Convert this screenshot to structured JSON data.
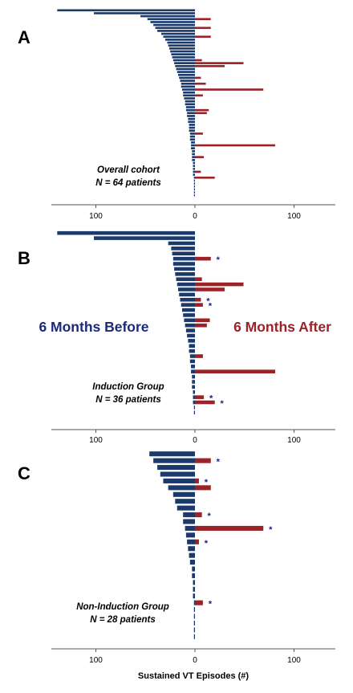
{
  "colors": {
    "before": "#1b3a6b",
    "after": "#9b2226",
    "star": "#1a237e",
    "axis": "#555555"
  },
  "before_label": "6 Months Before",
  "after_label": "6 Months After",
  "x_title": "Sustained VT Episodes (#)",
  "chart_data": [
    {
      "type": "bar",
      "orientation": "horizontal",
      "panel": "A",
      "note_lines": [
        "Overall cohort",
        "N = 64 patients"
      ],
      "xlim": [
        -140,
        140
      ],
      "xticks": [
        -100,
        0,
        100
      ],
      "tick_labels": [
        "100",
        "0",
        "100"
      ],
      "series": [
        {
          "name": "6 Months Before",
          "values": [
            139,
            102,
            55,
            48,
            45,
            42,
            40,
            38,
            34,
            32,
            30,
            28,
            27,
            26,
            25,
            24,
            23,
            22,
            21,
            20,
            19,
            18,
            17,
            16,
            15,
            14,
            14,
            13,
            12,
            12,
            11,
            10,
            10,
            9,
            9,
            8,
            8,
            7,
            7,
            6,
            6,
            6,
            5,
            5,
            5,
            4,
            4,
            4,
            3,
            3,
            3,
            3,
            2,
            2,
            2,
            2,
            2,
            1,
            1,
            1,
            1,
            1,
            1,
            1
          ]
        },
        {
          "name": "6 Months After",
          "values": [
            0,
            0,
            0,
            16,
            0,
            0,
            16,
            0,
            0,
            16,
            0,
            0,
            0,
            0,
            0,
            0,
            0,
            7,
            49,
            30,
            0,
            0,
            0,
            6,
            0,
            11,
            0,
            69,
            0,
            8,
            0,
            0,
            0,
            0,
            14,
            12,
            0,
            0,
            0,
            0,
            0,
            0,
            8,
            0,
            0,
            0,
            81,
            0,
            0,
            0,
            9,
            0,
            0,
            0,
            0,
            6,
            0,
            20,
            0,
            0,
            0,
            0,
            0,
            0
          ]
        }
      ],
      "starred": []
    },
    {
      "type": "bar",
      "orientation": "horizontal",
      "panel": "B",
      "note_lines": [
        "Induction Group",
        "N = 36 patients"
      ],
      "xlim": [
        -140,
        140
      ],
      "xticks": [
        -100,
        0,
        100
      ],
      "tick_labels": [
        "100",
        "0",
        "100"
      ],
      "series": [
        {
          "name": "6 Months Before",
          "values": [
            139,
            102,
            27,
            24,
            23,
            22,
            22,
            21,
            20,
            19,
            18,
            17,
            16,
            15,
            14,
            13,
            12,
            11,
            10,
            9,
            8,
            7,
            6,
            6,
            5,
            5,
            4,
            4,
            3,
            3,
            3,
            2,
            2,
            2,
            1,
            1
          ]
        },
        {
          "name": "6 Months After",
          "values": [
            0,
            0,
            0,
            0,
            0,
            16,
            0,
            0,
            0,
            7,
            49,
            30,
            0,
            6,
            8,
            0,
            0,
            15,
            12,
            0,
            0,
            0,
            0,
            0,
            8,
            0,
            0,
            81,
            0,
            0,
            0,
            0,
            9,
            20,
            0,
            0
          ]
        }
      ],
      "starred": [
        5,
        13,
        14,
        32,
        33
      ]
    },
    {
      "type": "bar",
      "orientation": "horizontal",
      "panel": "C",
      "note_lines": [
        "Non-Induction Group",
        "N = 28 patients"
      ],
      "xlim": [
        -140,
        140
      ],
      "xticks": [
        -100,
        0,
        100
      ],
      "tick_labels": [
        "100",
        "0",
        "100"
      ],
      "series": [
        {
          "name": "6 Months Before",
          "values": [
            46,
            42,
            38,
            35,
            32,
            27,
            22,
            20,
            18,
            12,
            12,
            10,
            9,
            8,
            7,
            6,
            5,
            3,
            3,
            2,
            2,
            2,
            1,
            1,
            1,
            1,
            1,
            1
          ]
        },
        {
          "name": "6 Months After",
          "values": [
            0,
            16,
            0,
            0,
            4,
            16,
            0,
            0,
            0,
            7,
            0,
            69,
            0,
            4,
            0,
            0,
            0,
            0,
            0,
            0,
            0,
            0,
            8,
            0,
            0,
            0,
            0,
            0
          ]
        }
      ],
      "starred": [
        1,
        4,
        9,
        11,
        13,
        22
      ]
    }
  ]
}
